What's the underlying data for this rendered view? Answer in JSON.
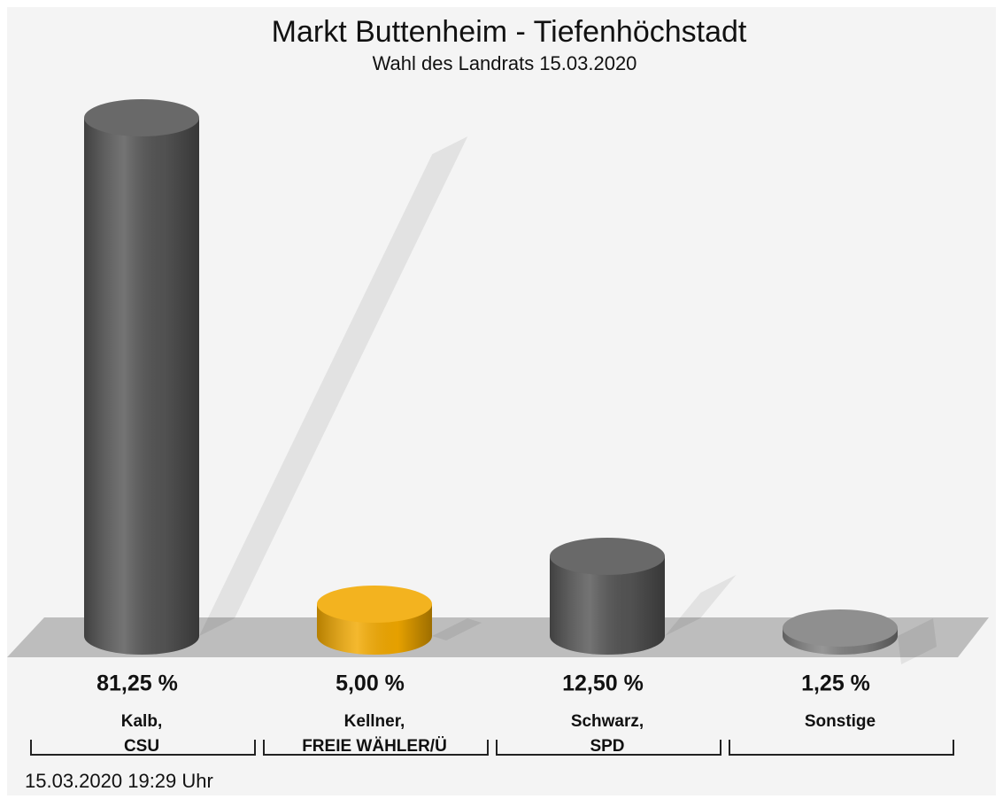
{
  "chart_data": {
    "type": "bar3d",
    "title": "Markt Buttenheim - Tiefenhöchstadt",
    "subtitle": "Wahl des Landrats 15.03.2020",
    "categories": [
      [
        "Kalb,",
        "CSU"
      ],
      [
        "Kellner,",
        "FREIE WÄHLER/Ü"
      ],
      [
        "Schwarz,",
        "SPD"
      ],
      [
        "Sonstige"
      ]
    ],
    "values": [
      81.25,
      5.0,
      12.5,
      1.25
    ],
    "value_labels": [
      "81,25 %",
      "5,00 %",
      "12,50 %",
      "1,25 %"
    ],
    "colors": [
      "#555555",
      "#f2a900",
      "#555555",
      "#808080"
    ],
    "footer": "15.03.2020 19:29 Uhr"
  }
}
